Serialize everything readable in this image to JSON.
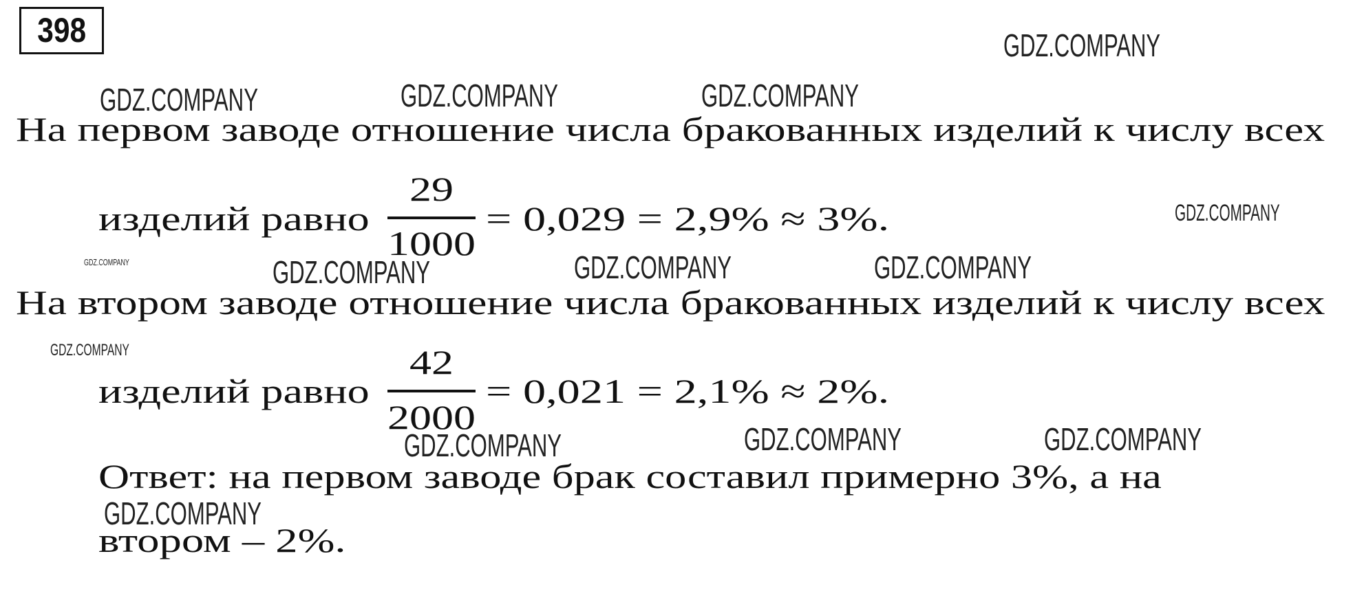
{
  "problem_number": "398",
  "watermark": "GDZ.COMPANY",
  "factory1": {
    "line1": "На первом заводе отношение числа бракованных изделий к числу всех",
    "line2_prefix": "изделий равно",
    "numerator": "29",
    "denominator": "1000",
    "result": "= 0,029 = 2,9% ≈ 3%."
  },
  "factory2": {
    "line1": "На втором заводе отношение числа бракованных изделий к числу всех",
    "line2_prefix": "изделий равно",
    "numerator": "42",
    "denominator": "2000",
    "result": "= 0,021 = 2,1% ≈ 2%."
  },
  "answer": {
    "line1": "Ответ: на первом заводе брак составил примерно 3%, а на",
    "line2": "втором – 2%."
  }
}
